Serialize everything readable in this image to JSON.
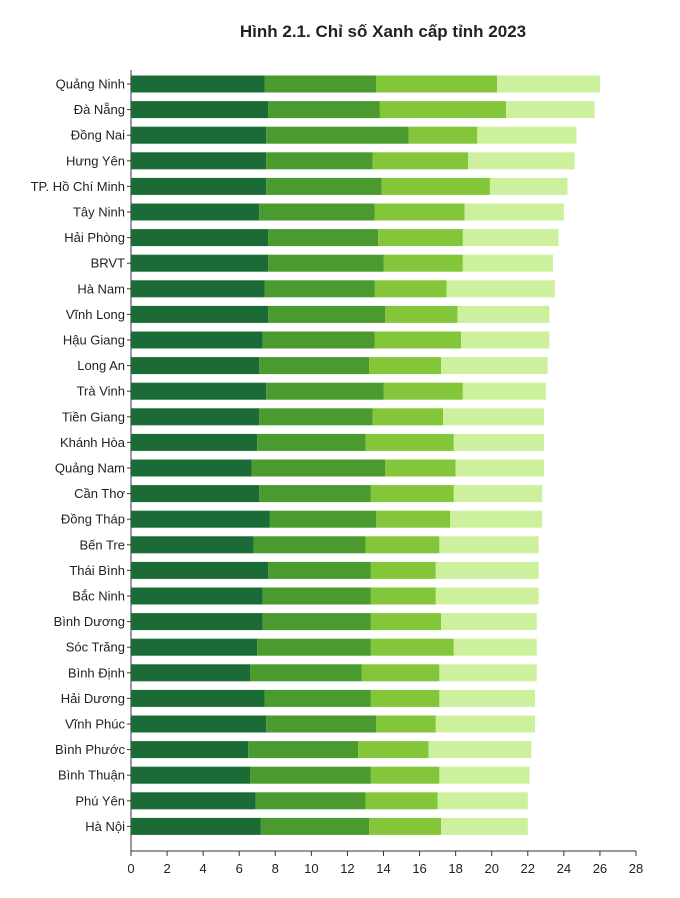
{
  "chart_data": {
    "type": "bar",
    "orientation": "horizontal",
    "stacked": true,
    "title": "Hình 2.1. Chỉ số Xanh cấp tỉnh 2023",
    "xlabel": "",
    "ylabel": "",
    "xlim": [
      0,
      28
    ],
    "xticks": [
      0,
      2,
      4,
      6,
      8,
      10,
      12,
      14,
      16,
      18,
      20,
      22,
      24,
      26,
      28
    ],
    "grid": false,
    "legend": "none",
    "categories": [
      "Quảng Ninh",
      "Đà Nẵng",
      "Đồng Nai",
      "Hưng Yên",
      "TP. Hồ Chí Minh",
      "Tây Ninh",
      "Hải Phòng",
      "BRVT",
      "Hà Nam",
      "Vĩnh Long",
      "Hậu Giang",
      "Long An",
      "Trà Vinh",
      "Tiền Giang",
      "Khánh Hòa",
      "Quảng Nam",
      "Cần Thơ",
      "Đồng Tháp",
      "Bến Tre",
      "Thái Bình",
      "Bắc Ninh",
      "Bình Dương",
      "Sóc Trăng",
      "Bình Định",
      "Hải Dương",
      "Vĩnh Phúc",
      "Bình Phước",
      "Bình Thuận",
      "Phú Yên",
      "Hà Nội"
    ],
    "series": [
      {
        "color": "#1a6b35",
        "values": [
          7.4,
          7.6,
          7.5,
          7.5,
          7.5,
          7.1,
          7.6,
          7.6,
          7.4,
          7.6,
          7.3,
          7.1,
          7.5,
          7.1,
          7.0,
          6.7,
          7.1,
          7.7,
          6.8,
          7.6,
          7.3,
          7.3,
          7.0,
          6.6,
          7.4,
          7.5,
          6.5,
          6.6,
          6.9,
          7.2
        ]
      },
      {
        "color": "#4a9a2f",
        "values": [
          6.2,
          6.2,
          7.9,
          5.9,
          6.4,
          6.4,
          6.1,
          6.4,
          6.1,
          6.5,
          6.2,
          6.1,
          6.5,
          6.3,
          6.0,
          7.4,
          6.2,
          5.9,
          6.2,
          5.7,
          6.0,
          6.0,
          6.3,
          6.2,
          5.9,
          6.1,
          6.1,
          6.7,
          6.1,
          6.0
        ]
      },
      {
        "color": "#84c639",
        "values": [
          6.7,
          7.0,
          3.8,
          5.3,
          6.0,
          5.0,
          4.7,
          4.4,
          4.0,
          4.0,
          4.8,
          4.0,
          4.4,
          3.9,
          4.9,
          3.9,
          4.6,
          4.1,
          4.1,
          3.6,
          3.6,
          3.9,
          4.6,
          4.3,
          3.8,
          3.3,
          3.9,
          3.8,
          4.0,
          4.0
        ]
      },
      {
        "color": "#ccf09c",
        "values": [
          5.7,
          4.9,
          5.5,
          5.9,
          4.3,
          5.5,
          5.3,
          5.0,
          6.0,
          5.1,
          4.9,
          5.9,
          4.6,
          5.6,
          5.0,
          4.9,
          4.9,
          5.1,
          5.5,
          5.7,
          5.7,
          5.3,
          4.6,
          5.4,
          5.3,
          5.5,
          5.7,
          5.0,
          5.0,
          4.8
        ]
      }
    ]
  }
}
